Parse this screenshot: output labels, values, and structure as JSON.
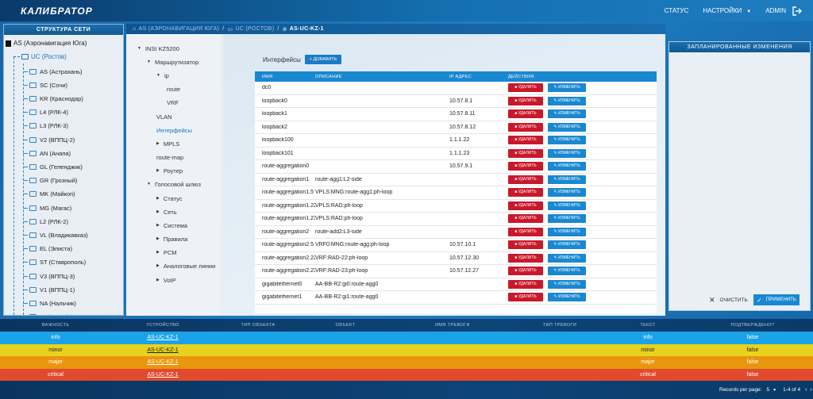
{
  "app": {
    "logo": "КАЛИБРАТОР"
  },
  "topnav": {
    "status": "СТАТУС",
    "settings": "НАСТРОЙКИ",
    "user": "ADMIN"
  },
  "left_panel": {
    "title": "СТРУКТУРА СЕТИ",
    "root": "AS (Аэронавигация Юга)",
    "selected": "UC (Ростов)",
    "items": [
      "AS (Астрахань)",
      "SC (Сочи)",
      "KR (Краснодар)",
      "L4 (РЛК-4)",
      "L3 (РЛК-3)",
      "V2 (ВППЦ-2)",
      "AN (Анапа)",
      "GL (Геленджик)",
      "GR (Грозный)",
      "MK (Майкоп)",
      "MG (Магас)",
      "L2 (РЛК-2)",
      "VL (Владикавказ)",
      "EL (Элиста)",
      "ST (Ставрополь)",
      "V3 (ВППЦ-3)",
      "V1 (ВППЦ-1)",
      "NA (Нальчик)",
      "L1 (РЛК-1)"
    ]
  },
  "breadcrumb": {
    "level1": "AS (АЭРОНАВИГАЦИЯ ЮГА)",
    "level2": "UC (РОСТОВ)",
    "current": "AS-UC-KZ-1"
  },
  "nav": {
    "root": "INSI KZ5200",
    "router": "Маршрутизатор",
    "ip": "ip",
    "route": "route",
    "vrf": "VRF",
    "vlan": "VLAN",
    "interfaces": "Интерфейсы",
    "mpls": "MPLS",
    "route_map": "route-map",
    "router2": "Роутер",
    "voice_gateway": "Голосовой шлюз",
    "status": "Статус",
    "network": "Сеть",
    "system": "Система",
    "rules": "Правила",
    "pcm": "PCM",
    "analog": "Аналоговые линии",
    "voip": "VoIP"
  },
  "interfaces": {
    "title": "Интерфейсы",
    "add_button": "+ ДОБАВИТЬ",
    "columns": [
      "ИМЯ",
      "ОПИСАНИЕ",
      "IP АДРЕС",
      "ДЕЙСТВИЯ"
    ],
    "delete_label": "УДАЛИТЬ",
    "edit_label": "ИЗМЕНИТЬ",
    "rows": [
      {
        "name": "dc0",
        "desc": "",
        "ip": ""
      },
      {
        "name": "loopback0",
        "desc": "",
        "ip": "10.57.8.1"
      },
      {
        "name": "loopback1",
        "desc": "",
        "ip": "10.57.8.11"
      },
      {
        "name": "loopback2",
        "desc": "",
        "ip": "10.57.8.12"
      },
      {
        "name": "loopback100",
        "desc": "",
        "ip": "1.1.1.22"
      },
      {
        "name": "loopback101",
        "desc": "",
        "ip": "1.1.1.23"
      },
      {
        "name": "route-aggregation0",
        "desc": "",
        "ip": "10.57.9.1"
      },
      {
        "name": "route-aggregation1",
        "desc": "route-agg1:L2-side",
        "ip": ""
      },
      {
        "name": "route-aggregation1.5",
        "desc": "VPLS:MNG:route-agg1:ph-loop",
        "ip": ""
      },
      {
        "name": "route-aggregation1.22",
        "desc": "VPLS:RAD:ph-loop",
        "ip": ""
      },
      {
        "name": "route-aggregation1.23",
        "desc": "VPLS:RAD:ph-loop",
        "ip": ""
      },
      {
        "name": "route-aggregation2",
        "desc": "route-add2:L3-side",
        "ip": ""
      },
      {
        "name": "route-aggregation2.5",
        "desc": "VRF0:MNG:route-agg:ph-loop",
        "ip": "10.57.10.1"
      },
      {
        "name": "route-aggregation2.22",
        "desc": "VRF:RAD-22:ph-loop",
        "ip": "10.57.12.30"
      },
      {
        "name": "route-aggregation2.23",
        "desc": "VRF:RAD-23:ph-loop",
        "ip": "10.57.12.27"
      },
      {
        "name": "gigabitethernet0",
        "desc": "AA-BB-R2:gi0:route-agg0",
        "ip": ""
      },
      {
        "name": "gigabitethernet1",
        "desc": "AA-BB-R2:gi1:route-agg0",
        "ip": ""
      }
    ]
  },
  "planned_changes": {
    "title": "ЗАПЛАНИРОВАННЫЕ ИЗМЕНЕНИЯ",
    "clear": "ОЧИСТИТЬ",
    "apply": "ПРИМЕНИТЬ"
  },
  "alarms": {
    "columns": [
      "ВАЖНОСТЬ",
      "УСТРОЙСТВО",
      "ТИП ОБЪЕКТА",
      "ОБЪЕКТ",
      "ИМЯ ТРЕВОГИ",
      "ТИП ТРЕВОГИ",
      "ТЕКСТ",
      "ПОДТВЕРЖДЕНО?"
    ],
    "rows": [
      {
        "severity": "info",
        "device": "AS-UC-KZ-1",
        "text": "info",
        "ack": "false"
      },
      {
        "severity": "minor",
        "device": "AS-UC-KZ-1",
        "text": "minor",
        "ack": "false"
      },
      {
        "severity": "major",
        "device": "AS-UC-KZ-1",
        "text": "major",
        "ack": "false"
      },
      {
        "severity": "critical",
        "device": "AS-UC-KZ-1",
        "text": "critical",
        "ack": "false"
      }
    ],
    "pager": {
      "label": "Records per page:",
      "per_page": "5",
      "range": "1-4 of 4"
    }
  },
  "colors": {
    "accent": "#1a88d0",
    "danger": "#c9182a",
    "info": "#1aa3e8",
    "minor": "#e8d21e",
    "major": "#e8960e",
    "critical": "#e14a2c"
  }
}
